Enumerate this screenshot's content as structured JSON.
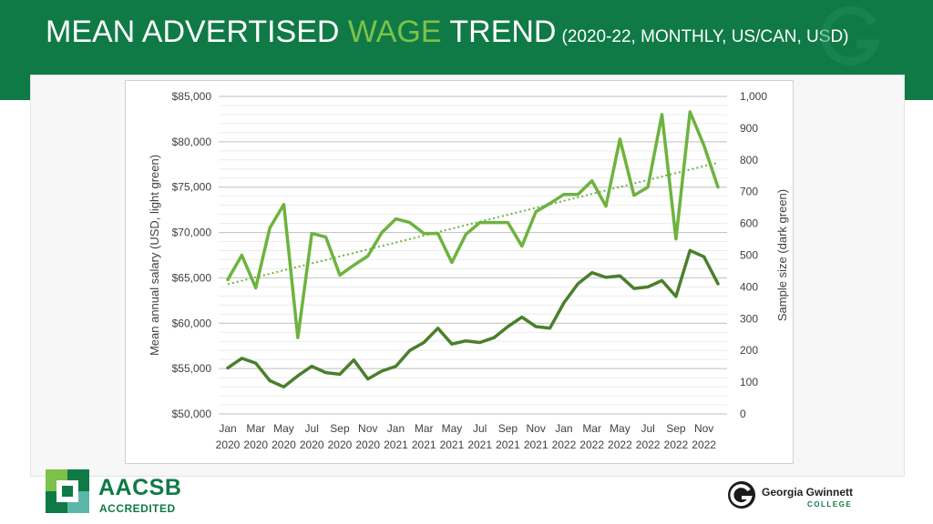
{
  "header": {
    "title_part1": "MEAN ADVERTISED ",
    "title_highlight": "WAGE",
    "title_part2": " TREND",
    "subtitle": "(2020-22, MONTHLY, US/CAN, USD)"
  },
  "colors": {
    "header_bg": "#0f7a46",
    "highlight": "#7cc24a",
    "light_series": "#6db33f",
    "dark_series": "#4a7f2c"
  },
  "logos": {
    "aacsb_name": "AACSB",
    "aacsb_sub": "ACCREDITED",
    "ggc_name": "Georgia Gwinnett",
    "ggc_sub": "COLLEGE"
  },
  "chart_data": {
    "type": "line",
    "ylabel": "Mean annual salary (USD, light green)",
    "y2label": "Sample size (dark green)",
    "ylim": [
      50000,
      85000
    ],
    "y2lim": [
      0,
      1000
    ],
    "yticks": [
      "$50,000",
      "$55,000",
      "$60,000",
      "$65,000",
      "$70,000",
      "$75,000",
      "$80,000",
      "$85,000"
    ],
    "y2ticks": [
      "0",
      "100",
      "200",
      "300",
      "400",
      "500",
      "600",
      "700",
      "800",
      "900",
      "1,000"
    ],
    "grid": true,
    "x_tick_labels": [
      [
        "Jan",
        "2020"
      ],
      [
        "Mar",
        "2020"
      ],
      [
        "May",
        "2020"
      ],
      [
        "Jul",
        "2020"
      ],
      [
        "Sep",
        "2020"
      ],
      [
        "Nov",
        "2020"
      ],
      [
        "Jan",
        "2021"
      ],
      [
        "Mar",
        "2021"
      ],
      [
        "May",
        "2021"
      ],
      [
        "Jul",
        "2021"
      ],
      [
        "Sep",
        "2021"
      ],
      [
        "Nov",
        "2021"
      ],
      [
        "Jan",
        "2022"
      ],
      [
        "Mar",
        "2022"
      ],
      [
        "May",
        "2022"
      ],
      [
        "Jul",
        "2022"
      ],
      [
        "Sep",
        "2022"
      ],
      [
        "Nov",
        "2022"
      ]
    ],
    "series": [
      {
        "axis": "left",
        "values": [
          64800,
          67500,
          63900,
          70500,
          73100,
          58400,
          69900,
          69500,
          65300,
          66400,
          67400,
          70000,
          71500,
          71100,
          69900,
          69900,
          66700,
          69800,
          71100,
          71100,
          71100,
          68500,
          72300,
          73200,
          74200,
          74200,
          75700,
          72900,
          80300,
          74100,
          75000,
          83000,
          69300,
          83300,
          79600,
          75000
        ]
      },
      {
        "axis": "right",
        "values": [
          145,
          175,
          160,
          105,
          85,
          120,
          150,
          130,
          125,
          170,
          110,
          135,
          150,
          200,
          225,
          270,
          220,
          230,
          225,
          240,
          275,
          305,
          275,
          270,
          350,
          410,
          445,
          430,
          435,
          395,
          400,
          420,
          370,
          515,
          495,
          410
        ]
      }
    ],
    "trendline": {
      "series_index": 0,
      "style": "dotted",
      "from": 64300,
      "to": 77700
    }
  }
}
